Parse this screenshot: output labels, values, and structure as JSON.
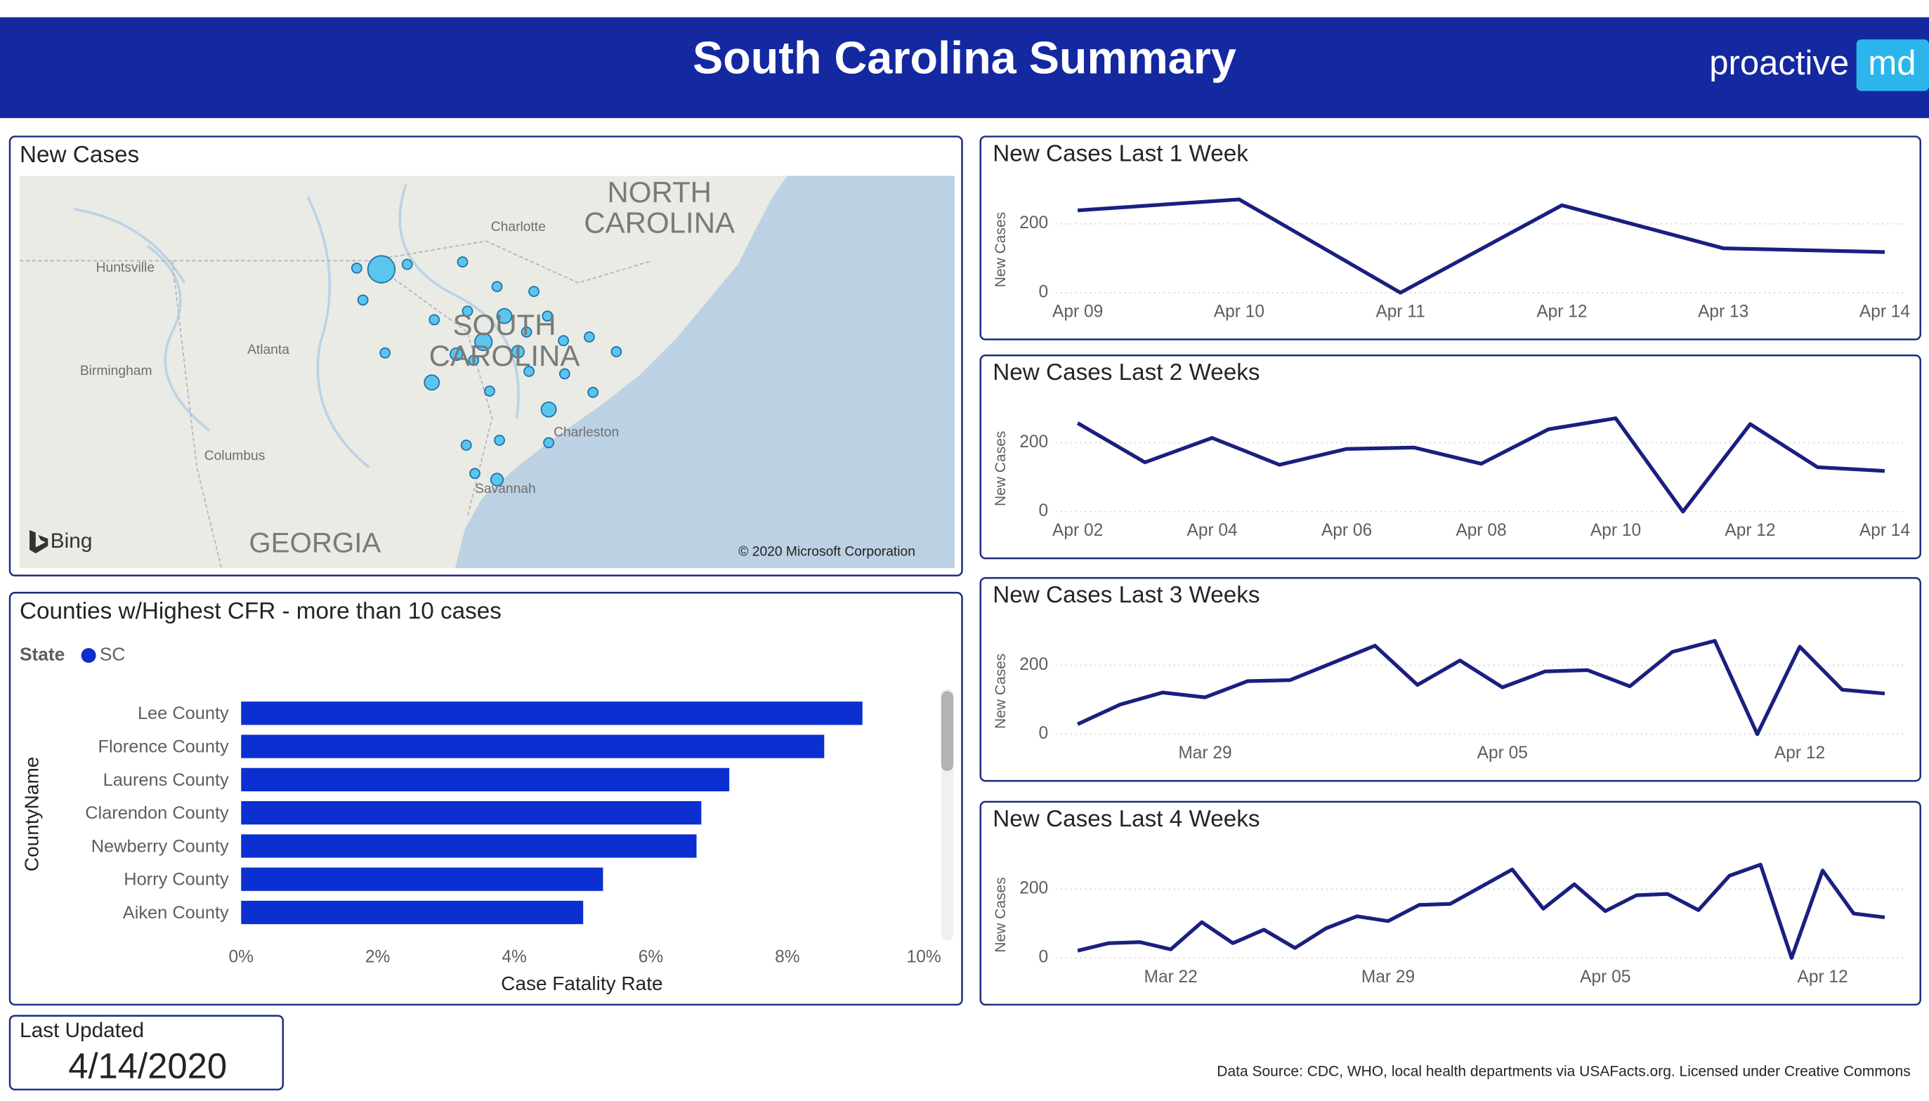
{
  "header": {
    "title": "South Carolina Summary",
    "brand": "proactive",
    "brand_badge": "md"
  },
  "map": {
    "title": "New Cases",
    "labels": [
      "NORTH",
      "CAROLINA",
      "SOUTH",
      "CAROLINA",
      "GEORGIA",
      "Charlotte",
      "Huntsville",
      "Atlanta",
      "Birmingham",
      "Columbus",
      "Charleston",
      "Savannah"
    ],
    "provider": "Bing",
    "attribution": "© 2020 Microsoft Corporation"
  },
  "chart_data": [
    {
      "type": "bar",
      "orientation": "horizontal",
      "title": "Counties w/Highest CFR - more than 10 cases",
      "legend_title": "State",
      "categories": [
        "Lee County",
        "Florence County",
        "Laurens County",
        "Clarendon County",
        "Newberry County",
        "Horry County",
        "Aiken County"
      ],
      "series": [
        {
          "name": "SC",
          "color": "#0b2fd0",
          "values": [
            9.1,
            8.54,
            7.15,
            6.74,
            6.67,
            5.3,
            5.01
          ]
        }
      ],
      "xlabel": "Case Fatality Rate",
      "ylabel": "CountyName",
      "xlim": [
        0,
        10
      ],
      "xticks": [
        {
          "value": 0,
          "label": "0%"
        },
        {
          "value": 2,
          "label": "2%"
        },
        {
          "value": 4,
          "label": "4%"
        },
        {
          "value": 6,
          "label": "6%"
        },
        {
          "value": 8,
          "label": "8%"
        },
        {
          "value": 10,
          "label": "10%"
        }
      ]
    },
    {
      "type": "line",
      "title": "New Cases Last 1 Week",
      "ylabel": "New Cases",
      "categories": [
        "Apr 09",
        "Apr 10",
        "Apr 11",
        "Apr 12",
        "Apr 13",
        "Apr 14"
      ],
      "values": [
        239,
        271,
        0,
        254,
        129,
        118
      ],
      "color": "#1a1f80",
      "ylim": [
        0,
        300
      ],
      "yticks": [
        0,
        200
      ],
      "grid": true
    },
    {
      "type": "line",
      "title": "New Cases Last 2 Weeks",
      "ylabel": "New Cases",
      "categories": [
        "Apr 02",
        null,
        "Apr 04",
        null,
        "Apr 06",
        null,
        "Apr 08",
        null,
        "Apr 10",
        null,
        "Apr 12",
        null,
        "Apr 14"
      ],
      "values": [
        257,
        143,
        214,
        136,
        182,
        186,
        139,
        239,
        271,
        0,
        254,
        129,
        118
      ],
      "color": "#1a1f80",
      "ylim": [
        0,
        300
      ],
      "yticks": [
        0,
        200
      ],
      "grid": true
    },
    {
      "type": "line",
      "title": "New Cases Last 3 Weeks",
      "ylabel": "New Cases",
      "categories": [
        null,
        null,
        null,
        "Mar 29",
        null,
        null,
        null,
        null,
        null,
        null,
        "Apr 05",
        null,
        null,
        null,
        null,
        null,
        null,
        "Apr 12",
        null,
        null
      ],
      "values": [
        29,
        86,
        121,
        107,
        154,
        157,
        207,
        257,
        143,
        214,
        136,
        182,
        186,
        139,
        239,
        271,
        0,
        254,
        129,
        118
      ],
      "color": "#1a1f80",
      "ylim": [
        0,
        300
      ],
      "yticks": [
        0,
        200
      ],
      "grid": true
    },
    {
      "type": "line",
      "title": "New Cases Last 4 Weeks",
      "ylabel": "New Cases",
      "categories": [
        null,
        null,
        null,
        "Mar 22",
        null,
        null,
        null,
        null,
        null,
        null,
        "Mar 29",
        null,
        null,
        null,
        null,
        null,
        null,
        "Apr 05",
        null,
        null,
        null,
        null,
        null,
        null,
        "Apr 12",
        null,
        null
      ],
      "values": [
        21,
        43,
        46,
        25,
        104,
        43,
        82,
        29,
        86,
        121,
        107,
        154,
        157,
        207,
        257,
        143,
        214,
        136,
        182,
        186,
        139,
        239,
        271,
        0,
        254,
        129,
        118
      ],
      "color": "#1a1f80",
      "ylim": [
        0,
        300
      ],
      "yticks": [
        0,
        200
      ],
      "grid": true
    }
  ],
  "last_updated": {
    "label": "Last Updated",
    "date": "4/14/2020"
  },
  "footer": "Data Source: CDC, WHO, local health departments via USAFacts.org. Licensed under Creative Commons"
}
